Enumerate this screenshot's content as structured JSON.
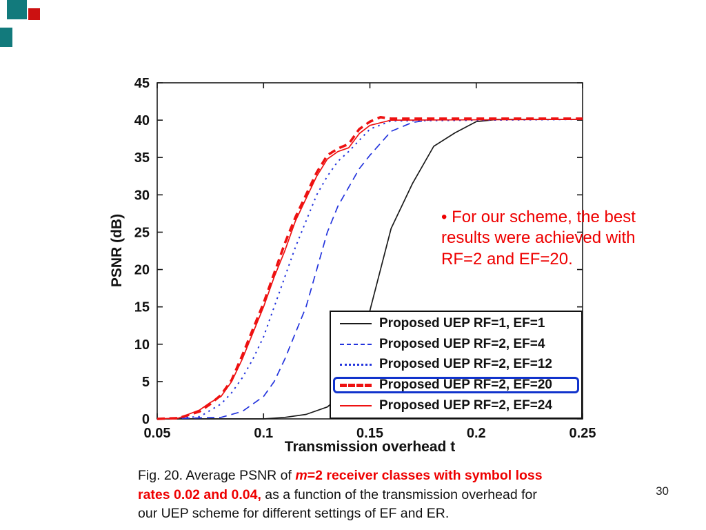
{
  "slide": {
    "page_number": "30",
    "decor_teal_color": "#127a7c",
    "decor_red_color": "#cc1111"
  },
  "annotation": {
    "text": "• For our scheme, the best results were achieved with RF=2 and EF=20.",
    "color": "#ee0000"
  },
  "caption": {
    "prefix": "Fig. 20. Average PSNR of ",
    "highlight_italic": "m",
    "highlight_rest": "=2 receiver classes with symbol loss rates 0.02 and 0.04,",
    "suffix": " as a function of the transmission overhead for our UEP scheme for different settings of EF and ER.",
    "highlight_color": "#ee0000"
  },
  "chart_data": {
    "type": "line",
    "title": "",
    "xlabel": "Transmission overhead t",
    "ylabel": "PSNR (dB)",
    "xlim": [
      0.05,
      0.25
    ],
    "ylim": [
      0,
      45
    ],
    "xticks": [
      0.05,
      0.1,
      0.15,
      0.2,
      0.25
    ],
    "xtick_labels": [
      "0.05",
      "0.1",
      "0.15",
      "0.2",
      "0.25"
    ],
    "yticks": [
      0,
      5,
      10,
      15,
      20,
      25,
      30,
      35,
      40,
      45
    ],
    "grid": false,
    "legend_position": "lower right inside",
    "legend_highlight_index": 3,
    "series": [
      {
        "label": "Proposed UEP RF=1, EF=1",
        "color": "#1a1a1a",
        "dash": "solid",
        "width": 1.7,
        "x": [
          0.05,
          0.1,
          0.11,
          0.12,
          0.13,
          0.14,
          0.15,
          0.16,
          0.17,
          0.18,
          0.19,
          0.2,
          0.21,
          0.25
        ],
        "y": [
          0,
          0,
          0.2,
          0.6,
          1.6,
          4,
          14.5,
          25.5,
          31.5,
          36.5,
          38.3,
          39.8,
          40.1,
          40.1
        ]
      },
      {
        "label": "Proposed UEP RF=2, EF=4",
        "color": "#2233dd",
        "dash": "dashed",
        "width": 1.7,
        "x": [
          0.05,
          0.08,
          0.09,
          0.1,
          0.105,
          0.11,
          0.115,
          0.12,
          0.125,
          0.13,
          0.135,
          0.14,
          0.145,
          0.15,
          0.16,
          0.17,
          0.18,
          0.25
        ],
        "y": [
          0,
          0.2,
          1,
          3,
          5,
          8,
          11.5,
          15,
          20,
          25,
          28.5,
          31,
          33.5,
          35.3,
          38.5,
          39.7,
          40.1,
          40.1
        ]
      },
      {
        "label": "Proposed UEP RF=2, EF=12",
        "color": "#2233dd",
        "dash": "dotted",
        "width": 2.0,
        "x": [
          0.05,
          0.07,
          0.08,
          0.085,
          0.09,
          0.095,
          0.1,
          0.105,
          0.11,
          0.115,
          0.12,
          0.125,
          0.13,
          0.135,
          0.14,
          0.15,
          0.16,
          0.25
        ],
        "y": [
          0,
          0.3,
          2,
          3.5,
          5.5,
          8,
          11,
          15,
          19,
          23,
          26.5,
          30,
          32.5,
          34.5,
          35.8,
          38.8,
          39.9,
          40.1
        ]
      },
      {
        "label": "Proposed UEP RF=2, EF=20",
        "color": "#ee1111",
        "dash": "dashed",
        "width": 3.6,
        "x": [
          0.05,
          0.06,
          0.07,
          0.075,
          0.08,
          0.085,
          0.09,
          0.095,
          0.1,
          0.105,
          0.11,
          0.115,
          0.12,
          0.125,
          0.13,
          0.135,
          0.14,
          0.145,
          0.15,
          0.155,
          0.16,
          0.25
        ],
        "y": [
          0,
          0.1,
          1,
          2,
          3.2,
          5.2,
          8.5,
          12,
          15.5,
          19.5,
          23.5,
          27,
          30,
          33,
          35.3,
          36.2,
          36.8,
          38.8,
          39.8,
          40.4,
          40.2,
          40.2
        ]
      },
      {
        "label": "Proposed UEP RF=2, EF=24",
        "color": "#ee1111",
        "dash": "solid",
        "width": 1.7,
        "x": [
          0.05,
          0.06,
          0.07,
          0.075,
          0.08,
          0.085,
          0.09,
          0.095,
          0.1,
          0.105,
          0.11,
          0.115,
          0.12,
          0.125,
          0.13,
          0.135,
          0.14,
          0.145,
          0.15,
          0.16,
          0.25
        ],
        "y": [
          0,
          0.1,
          1.2,
          2.2,
          3.0,
          5.0,
          8,
          11.5,
          15,
          19,
          22.5,
          26.5,
          29.5,
          32.5,
          34.8,
          35.8,
          36.3,
          38.2,
          39.3,
          40.0,
          40.1
        ]
      }
    ]
  }
}
